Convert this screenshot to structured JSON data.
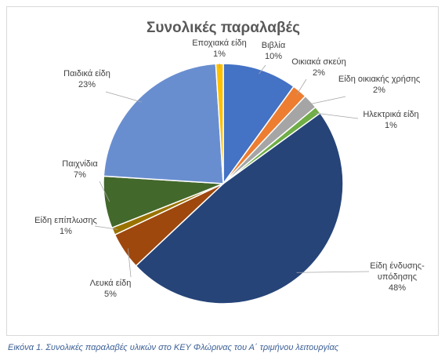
{
  "chart_data": {
    "type": "pie",
    "title": "Συνολικές παραλαβές",
    "slices": [
      {
        "label": "Βιβλία",
        "value": 10,
        "color": "#4472c4"
      },
      {
        "label": "Οικιακά σκεύη",
        "value": 2,
        "color": "#ed7d31"
      },
      {
        "label": "Είδη οικιακής χρήσης",
        "value": 2,
        "color": "#a5a5a5"
      },
      {
        "label": "Ηλεκτρικά είδη",
        "value": 1,
        "color": "#70ad47"
      },
      {
        "label": "Είδη ένδυσης-υπόδησης",
        "value": 48,
        "color": "#264478"
      },
      {
        "label": "Λευκά είδη",
        "value": 5,
        "color": "#9e480e"
      },
      {
        "label": "Είδη επίπλωσης",
        "value": 1,
        "color": "#997300"
      },
      {
        "label": "Παιχνίδια",
        "value": 7,
        "color": "#43682b"
      },
      {
        "label": "Παιδικά είδη",
        "value": 23,
        "color": "#698ed0"
      },
      {
        "label": "Εποχιακά είδη",
        "value": 1,
        "color": "#ffc000"
      }
    ],
    "labels_text": [
      {
        "lines": [
          "Βιβλία",
          "10%"
        ]
      },
      {
        "lines": [
          "Οικιακά σκεύη",
          "2%"
        ]
      },
      {
        "lines": [
          "Είδη οικιακής χρήσης",
          "2%"
        ]
      },
      {
        "lines": [
          "Ηλεκτρικά είδη",
          "1%"
        ]
      },
      {
        "lines": [
          "Είδη ένδυσης-",
          "υπόδησης",
          "48%"
        ]
      },
      {
        "lines": [
          "Λευκά είδη",
          "5%"
        ]
      },
      {
        "lines": [
          "Είδη επίπλωσης",
          "1%"
        ]
      },
      {
        "lines": [
          "Παιχνίδια",
          "7%"
        ]
      },
      {
        "lines": [
          "Παιδικά είδη",
          "23%"
        ]
      },
      {
        "lines": [
          "Εποχιακά είδη",
          "1%"
        ]
      }
    ]
  },
  "caption": "Εικόνα 1. Συνολικές παραλαβές υλικών στο ΚΕΥ Φλώρινας του Α΄ τριμήνου λειτουργίας"
}
